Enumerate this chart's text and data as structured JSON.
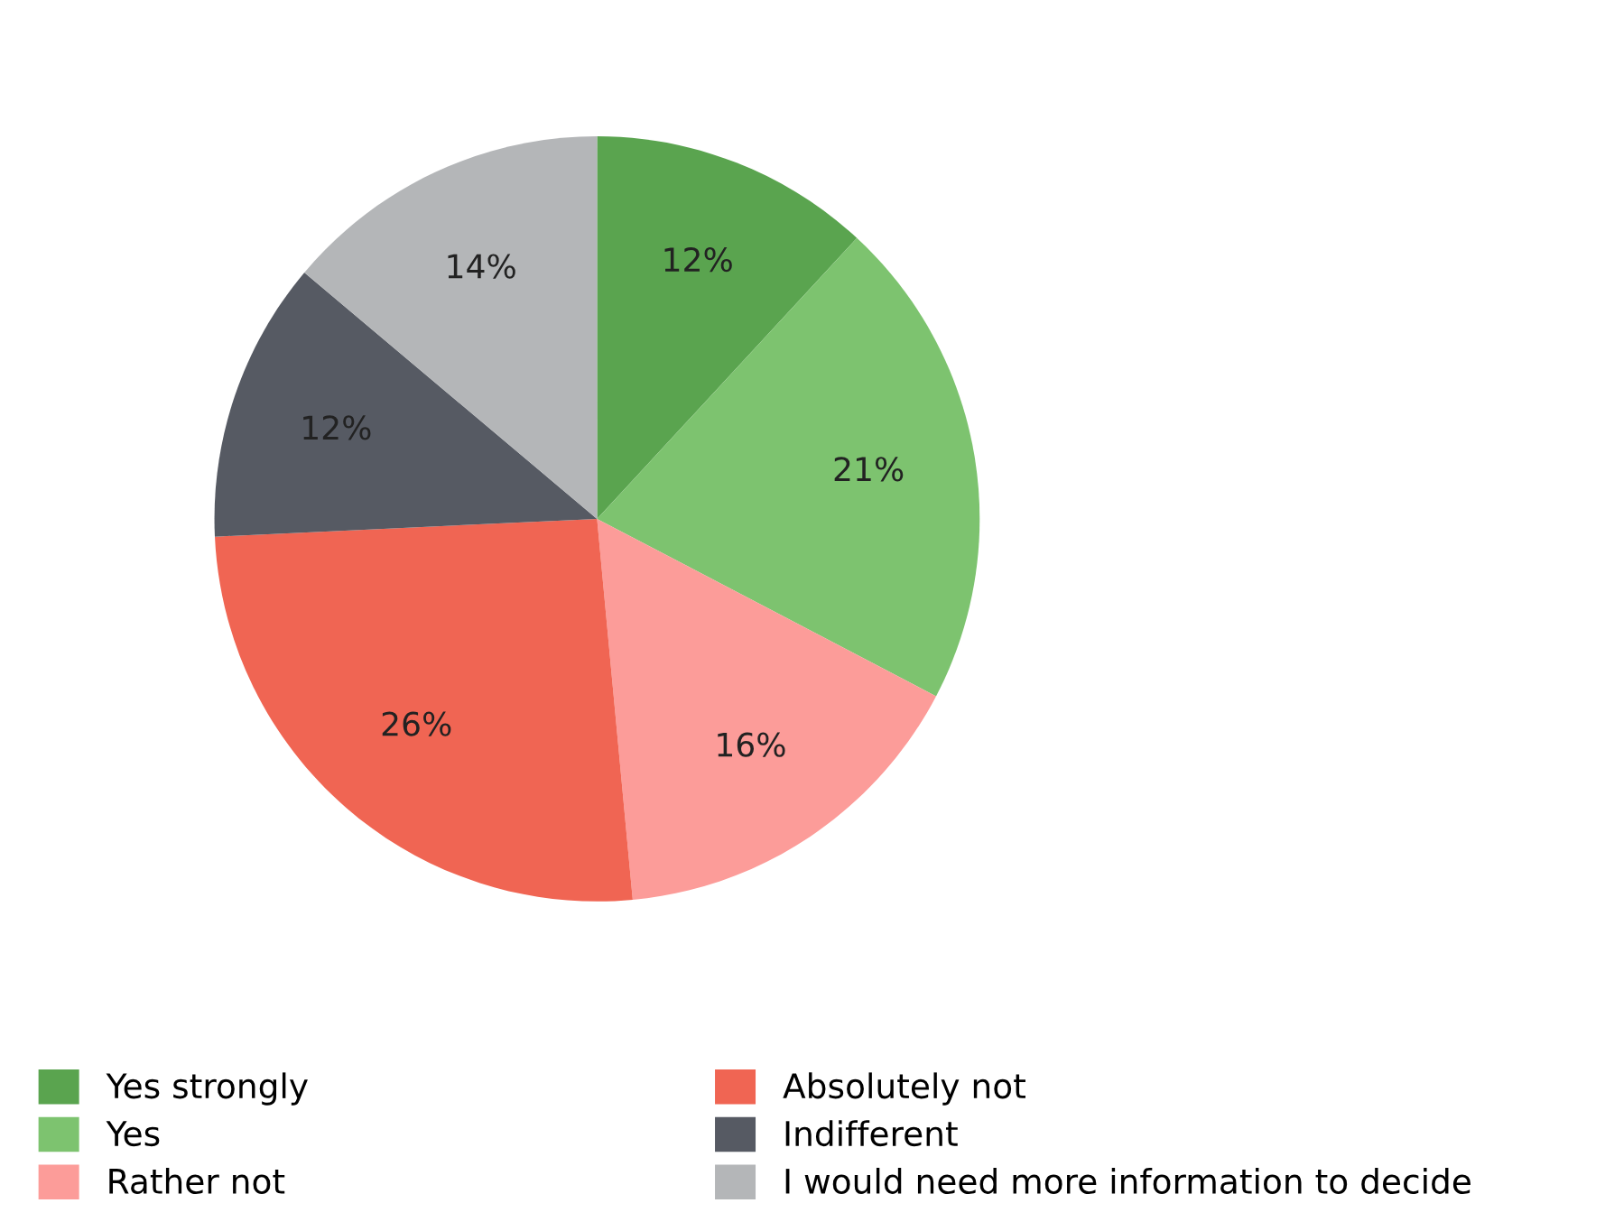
{
  "chart_data": {
    "type": "pie",
    "categories": [
      "Yes strongly",
      "Yes",
      "Rather not",
      "Absolutely not",
      "Indifferent",
      "I would need more information to decide"
    ],
    "values": [
      12,
      21,
      16,
      26,
      12,
      14
    ],
    "value_labels": [
      "12%",
      "21%",
      "16%",
      "26%",
      "12%",
      "14%"
    ],
    "colors": [
      "#5aa44f",
      "#7dc36f",
      "#fc9c99",
      "#f06553",
      "#565a63",
      "#b4b6b8"
    ],
    "legend": "bottom"
  }
}
